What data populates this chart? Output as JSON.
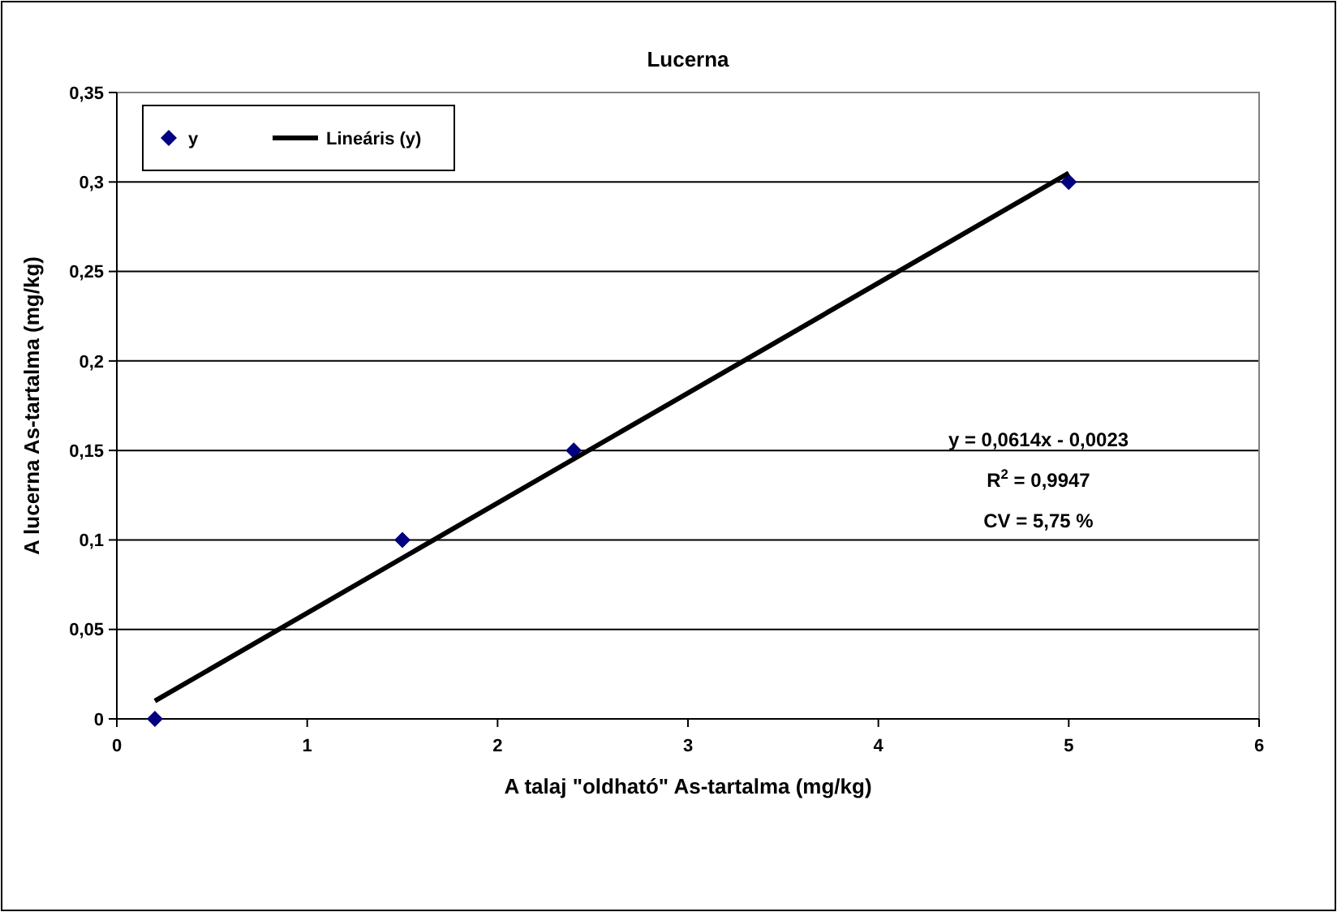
{
  "chart_data": {
    "type": "scatter",
    "title": "Lucerna",
    "xlabel": "A talaj \"oldható\" As-tartalma (mg/kg)",
    "ylabel": "A lucerna As-tartalma (mg/kg)",
    "series": [
      {
        "name": "y",
        "type": "scatter",
        "color": "#000080",
        "marker": "diamond",
        "x": [
          0.2,
          1.5,
          2.4,
          5
        ],
        "values": [
          0,
          0.1,
          0.15,
          0.3
        ]
      },
      {
        "name": "Lineáris (y)",
        "type": "line",
        "color": "#000000",
        "marker": "none",
        "line_style": "solid",
        "x": [
          0.2,
          5
        ],
        "values": [
          0.01,
          0.305
        ]
      }
    ],
    "xlim": [
      0,
      6
    ],
    "xticks": [
      0,
      1,
      2,
      3,
      4,
      5,
      6
    ],
    "ylim": [
      0,
      0.35
    ],
    "yticks": [
      0,
      {
        "value": 0.05,
        "label": "0,05"
      },
      {
        "value": 0.1,
        "label": "0,1"
      },
      {
        "value": 0.15,
        "label": "0,15"
      },
      {
        "value": 0.2,
        "label": "0,2"
      },
      {
        "value": 0.25,
        "label": "0,25"
      },
      {
        "value": 0.3,
        "label": "0,3"
      },
      {
        "value": 0.35,
        "label": "0,35"
      }
    ],
    "grid": "y",
    "legend": "top left",
    "annotations": [
      "y = 0,0614x - 0,0023",
      "R$^{2}$ = 0,9947",
      "CV = 5,75 %"
    ]
  }
}
